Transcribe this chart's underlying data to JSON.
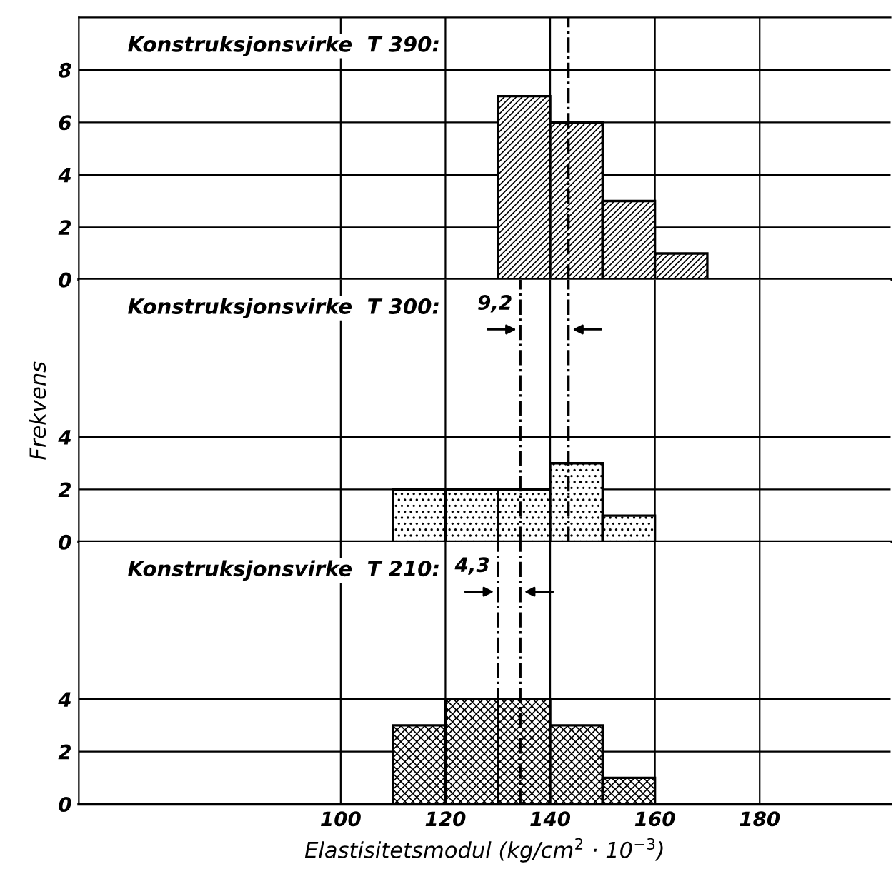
{
  "chart_data": [
    {
      "type": "histogram",
      "title": "Konstruksjonsvirke  T 390:",
      "bins": [
        130,
        140,
        150,
        160,
        170
      ],
      "values": [
        7,
        6,
        3,
        1
      ],
      "color": "#000000",
      "xlim": [
        50,
        205
      ],
      "xticks": [
        100,
        120,
        140,
        160,
        180
      ],
      "ylim": [
        0,
        10
      ],
      "yticks": [
        0,
        2,
        4,
        6,
        8
      ],
      "grid": true,
      "tick_labels": "y",
      "ref_lines": [
        {
          "axis": "x",
          "value": 143.5,
          "line_style": "dashdot"
        }
      ]
    },
    {
      "type": "histogram",
      "title": "Konstruksjonsvirke  T 300:",
      "ylabel": "Frekvens",
      "bins": [
        110,
        120,
        130,
        140,
        150,
        160
      ],
      "values": [
        2,
        2,
        2,
        3,
        1
      ],
      "color": "#000000",
      "xlim": [
        50,
        205
      ],
      "xticks": [
        100,
        120,
        140,
        160,
        180
      ],
      "ylim": [
        0,
        10
      ],
      "yticks": [
        0,
        2,
        4
      ],
      "grid": true,
      "tick_labels": "y",
      "ref_lines": [
        {
          "axis": "x",
          "value": 134.3,
          "line_style": "dashdot"
        },
        {
          "axis": "x",
          "value": 143.5,
          "line_style": "dashdot"
        }
      ],
      "annotations": [
        "9,2"
      ]
    },
    {
      "type": "histogram",
      "title": "Konstruksjonsvirke  T 210:",
      "xlabel": "Elastisitetsmodul (kg/cm$^{2}$ · 10$^{−3}$)",
      "bins": [
        110,
        120,
        130,
        140,
        150,
        160
      ],
      "values": [
        3,
        4,
        4,
        3,
        1
      ],
      "color": "#000000",
      "xlim": [
        50,
        205
      ],
      "xticks": [
        100,
        120,
        140,
        160,
        180
      ],
      "ylim": [
        0,
        10
      ],
      "yticks": [
        0,
        2,
        4
      ],
      "grid": true,
      "ref_lines": [
        {
          "axis": "x",
          "value": 130.0,
          "line_style": "dashdot"
        },
        {
          "axis": "x",
          "value": 134.3,
          "line_style": "dashdot"
        }
      ],
      "annotations": [
        "4,3"
      ]
    }
  ]
}
